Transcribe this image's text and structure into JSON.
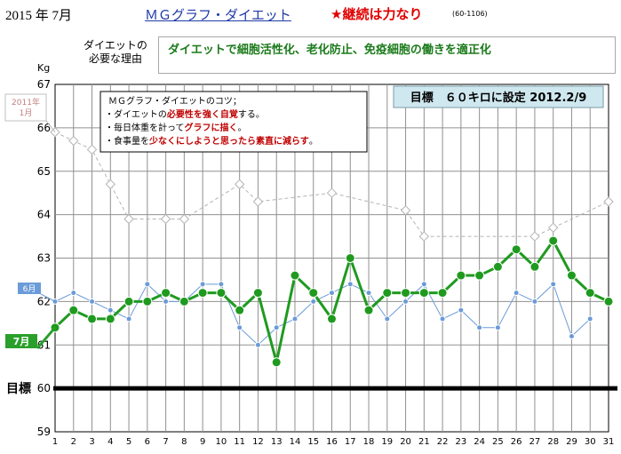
{
  "header": {
    "date": "2015 年 7月",
    "app_link": "ＭＧグラフ・ダイエット",
    "motto": "★継続は力なり",
    "code": "(60-1106)"
  },
  "reason": {
    "label_line1": "ダイエットの",
    "label_line2": "必要な理由",
    "text": "ダイエットで細胞活性化、老化防止、免疫細胞の働きを適正化"
  },
  "tips": {
    "title": "ＭＧグラフ・ダイエットのコツ；",
    "lines": [
      [
        {
          "t": "・ダイエットの",
          "s": "n"
        },
        {
          "t": "必要性を強く自覚",
          "s": "r"
        },
        {
          "t": "する。",
          "s": "n"
        }
      ],
      [
        {
          "t": "・毎日体重を計って",
          "s": "n"
        },
        {
          "t": "グラフに描く",
          "s": "r"
        },
        {
          "t": "。",
          "s": "n"
        }
      ],
      [
        {
          "t": "・食事量を",
          "s": "n"
        },
        {
          "t": "少なくにしようと思ったら素直に減らす",
          "s": "r"
        },
        {
          "t": "。",
          "s": "n"
        }
      ]
    ]
  },
  "goal_box": "目標　６０キロに設定 2012.2/9",
  "colors": {
    "current": "#1f9a1f",
    "prev": "#6b9bd8",
    "year": "#b4b4b4",
    "tag_current": "#2aa02a",
    "tag_prev": "#6b9bd8",
    "goal_line": "#000000",
    "year_tag_text": "#c08080"
  },
  "chart_data": {
    "type": "line",
    "ylabel": "Kg",
    "ylim": [
      59,
      67
    ],
    "yticks": [
      59,
      60,
      61,
      62,
      63,
      64,
      65,
      66,
      67
    ],
    "x": [
      1,
      2,
      3,
      4,
      5,
      6,
      7,
      8,
      9,
      10,
      11,
      12,
      13,
      14,
      15,
      16,
      17,
      18,
      19,
      20,
      21,
      22,
      23,
      24,
      25,
      26,
      27,
      28,
      29,
      30,
      31
    ],
    "goal": {
      "label": "目標",
      "value": 60
    },
    "series": [
      {
        "name": "7月",
        "style": "current",
        "values": [
          61.4,
          61.8,
          61.6,
          61.6,
          62.0,
          62.0,
          62.2,
          62.0,
          62.2,
          62.2,
          61.8,
          62.2,
          60.6,
          62.6,
          62.2,
          61.6,
          63.0,
          61.8,
          62.2,
          62.2,
          62.2,
          62.2,
          62.6,
          62.6,
          62.8,
          63.2,
          62.8,
          63.4,
          62.6,
          62.2,
          62.0
        ]
      },
      {
        "name": "6月",
        "style": "prev",
        "values": [
          62.0,
          62.2,
          62.0,
          61.8,
          61.6,
          62.4,
          62.0,
          62.0,
          62.4,
          62.4,
          61.4,
          61.0,
          61.4,
          61.6,
          62.0,
          62.2,
          62.4,
          62.2,
          61.6,
          62.0,
          62.4,
          61.6,
          61.8,
          61.4,
          61.4,
          62.2,
          62.0,
          62.4,
          61.2,
          61.6,
          null
        ]
      },
      {
        "name": "2011年 1月",
        "style": "year",
        "values": [
          65.9,
          65.7,
          65.5,
          64.7,
          63.9,
          null,
          63.9,
          63.9,
          null,
          null,
          64.7,
          64.3,
          null,
          null,
          null,
          64.5,
          null,
          null,
          null,
          64.1,
          63.5,
          null,
          null,
          null,
          null,
          null,
          63.5,
          63.7,
          null,
          null,
          64.3
        ]
      }
    ]
  }
}
